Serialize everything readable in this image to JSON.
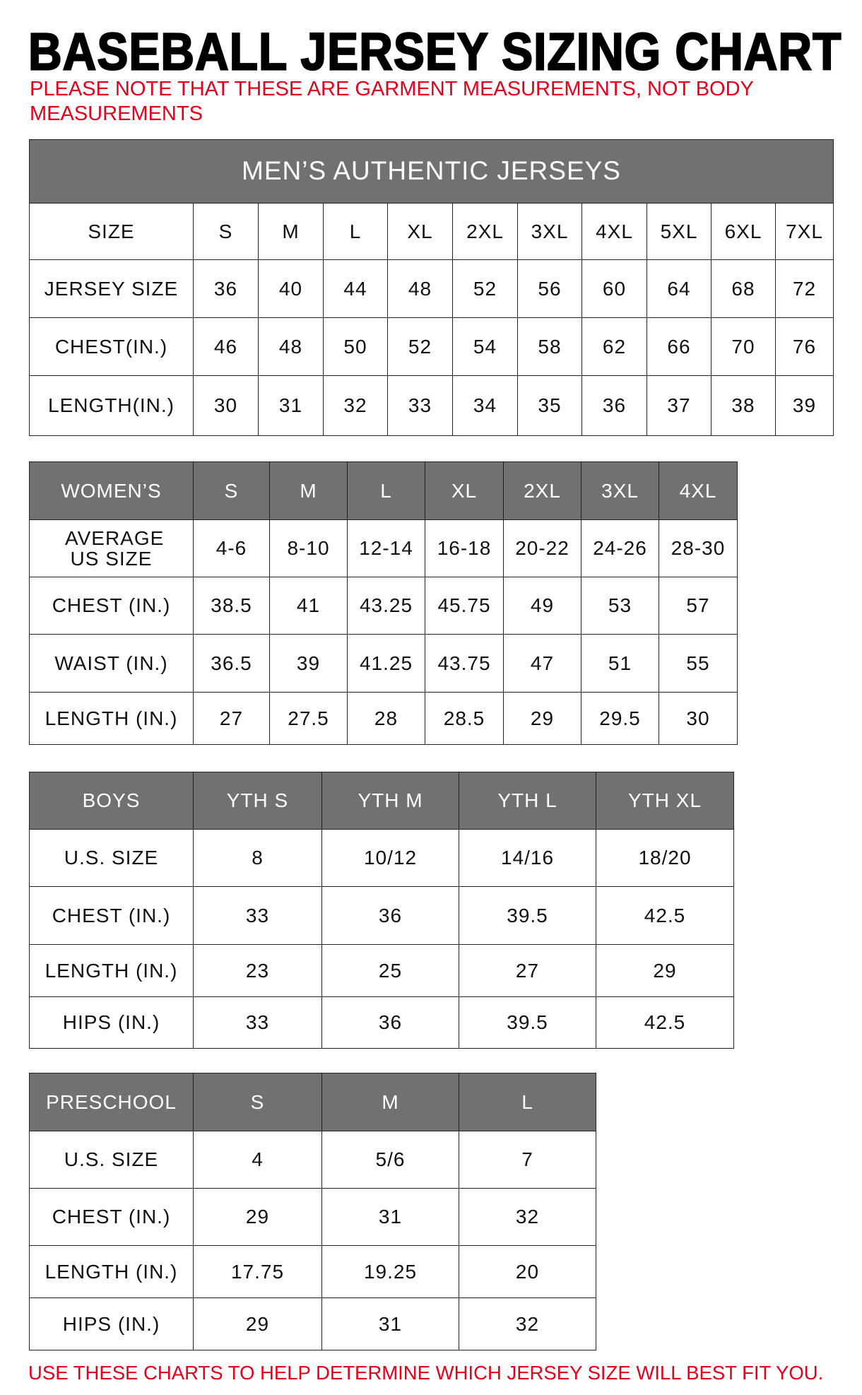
{
  "title": "BASEBALL JERSEY SIZING CHART",
  "note_line1": "PLEASE NOTE THAT THESE ARE GARMENT MEASUREMENTS, NOT BODY",
  "note_line2": "MEASUREMENTS",
  "footer": "USE THESE CHARTS TO HELP DETERMINE WHICH JERSEY SIZE WILL BEST FIT YOU.",
  "colors": {
    "header_gray": "#717171",
    "note_red": "#e5001a"
  },
  "tables": [
    {
      "caption": "MEN’S AUTHENTIC JERSEYS",
      "header": [
        "SIZE",
        "S",
        "M",
        "L",
        "XL",
        "2XL",
        "3XL",
        "4XL",
        "5XL",
        "6XL",
        "7XL"
      ],
      "header_dark": false,
      "rows": [
        [
          "JERSEY SIZE",
          "36",
          "40",
          "44",
          "48",
          "52",
          "56",
          "60",
          "64",
          "68",
          "72"
        ],
        [
          "CHEST(IN.)",
          "46",
          "48",
          "50",
          "52",
          "54",
          "58",
          "62",
          "66",
          "70",
          "76"
        ],
        [
          "LENGTH(IN.)",
          "30",
          "31",
          "32",
          "33",
          "34",
          "35",
          "36",
          "37",
          "38",
          "39"
        ]
      ]
    },
    {
      "header": [
        "WOMEN’S",
        "S",
        "M",
        "L",
        "XL",
        "2XL",
        "3XL",
        "4XL"
      ],
      "header_dark": true,
      "rows": [
        [
          "AVERAGE US SIZE",
          "4-6",
          "8-10",
          "12-14",
          "16-18",
          "20-22",
          "24-26",
          "28-30"
        ],
        [
          "CHEST (IN.)",
          "38.5",
          "41",
          "43.25",
          "45.75",
          "49",
          "53",
          "57"
        ],
        [
          "WAIST (IN.)",
          "36.5",
          "39",
          "41.25",
          "43.75",
          "47",
          "51",
          "55"
        ],
        [
          "LENGTH (IN.)",
          "27",
          "27.5",
          "28",
          "28.5",
          "29",
          "29.5",
          "30"
        ]
      ]
    },
    {
      "header": [
        "BOYS",
        "YTH S",
        "YTH M",
        "YTH L",
        "YTH XL"
      ],
      "header_dark": true,
      "rows": [
        [
          "U.S. SIZE",
          "8",
          "10/12",
          "14/16",
          "18/20"
        ],
        [
          "CHEST (IN.)",
          "33",
          "36",
          "39.5",
          "42.5"
        ],
        [
          "LENGTH (IN.)",
          "23",
          "25",
          "27",
          "29"
        ],
        [
          "HIPS (IN.)",
          "33",
          "36",
          "39.5",
          "42.5"
        ]
      ]
    },
    {
      "header": [
        "PRESCHOOL",
        "S",
        "M",
        "L"
      ],
      "header_dark": true,
      "rows": [
        [
          "U.S. SIZE",
          "4",
          "5/6",
          "7"
        ],
        [
          "CHEST (IN.)",
          "29",
          "31",
          "32"
        ],
        [
          "LENGTH (IN.)",
          "17.75",
          "19.25",
          "20"
        ],
        [
          "HIPS (IN.)",
          "29",
          "31",
          "32"
        ]
      ]
    }
  ]
}
